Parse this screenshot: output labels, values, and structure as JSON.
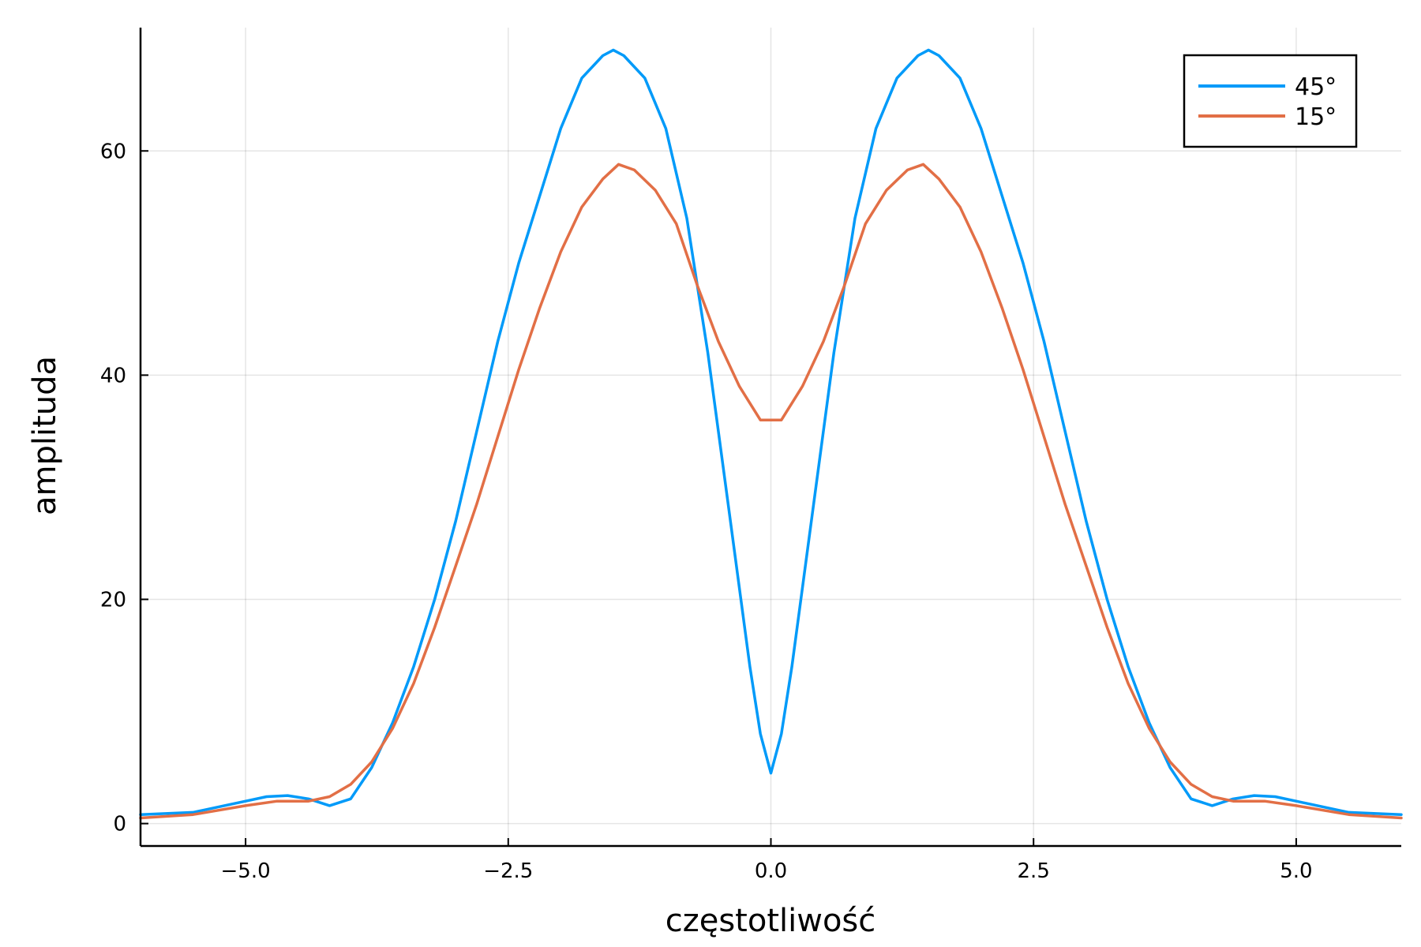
{
  "chart_data": {
    "type": "line",
    "xlabel": "częstotliwość",
    "ylabel": "amplituda",
    "xlim": [
      -6.0,
      6.0
    ],
    "ylim": [
      -2.0,
      71.0
    ],
    "xticks": [
      -5.0,
      -2.5,
      0.0,
      2.5,
      5.0
    ],
    "xtick_labels": [
      "−5.0",
      "−2.5",
      "0.0",
      "2.5",
      "5.0"
    ],
    "yticks": [
      0,
      20,
      40,
      60
    ],
    "ytick_labels": [
      "0",
      "20",
      "40",
      "60"
    ],
    "grid": true,
    "legend_position": "top-right",
    "series": [
      {
        "name": "45°",
        "color": "#009af9",
        "points": [
          [
            -6.0,
            0.8
          ],
          [
            -5.5,
            1.0
          ],
          [
            -5.0,
            2.0
          ],
          [
            -4.8,
            2.4
          ],
          [
            -4.6,
            2.5
          ],
          [
            -4.4,
            2.2
          ],
          [
            -4.2,
            1.6
          ],
          [
            -4.0,
            2.2
          ],
          [
            -3.8,
            5.0
          ],
          [
            -3.6,
            9.0
          ],
          [
            -3.4,
            14.0
          ],
          [
            -3.2,
            20.0
          ],
          [
            -3.0,
            27.0
          ],
          [
            -2.8,
            35.0
          ],
          [
            -2.6,
            43.0
          ],
          [
            -2.4,
            50.0
          ],
          [
            -2.2,
            56.0
          ],
          [
            -2.0,
            62.0
          ],
          [
            -1.8,
            66.5
          ],
          [
            -1.6,
            68.5
          ],
          [
            -1.5,
            69.0
          ],
          [
            -1.4,
            68.5
          ],
          [
            -1.2,
            66.5
          ],
          [
            -1.0,
            62.0
          ],
          [
            -0.8,
            54.0
          ],
          [
            -0.6,
            42.0
          ],
          [
            -0.4,
            28.0
          ],
          [
            -0.2,
            14.0
          ],
          [
            -0.1,
            8.0
          ],
          [
            0.0,
            4.5
          ],
          [
            0.1,
            8.0
          ],
          [
            0.2,
            14.0
          ],
          [
            0.4,
            28.0
          ],
          [
            0.6,
            42.0
          ],
          [
            0.8,
            54.0
          ],
          [
            1.0,
            62.0
          ],
          [
            1.2,
            66.5
          ],
          [
            1.4,
            68.5
          ],
          [
            1.5,
            69.0
          ],
          [
            1.6,
            68.5
          ],
          [
            1.8,
            66.5
          ],
          [
            2.0,
            62.0
          ],
          [
            2.2,
            56.0
          ],
          [
            2.4,
            50.0
          ],
          [
            2.6,
            43.0
          ],
          [
            2.8,
            35.0
          ],
          [
            3.0,
            27.0
          ],
          [
            3.2,
            20.0
          ],
          [
            3.4,
            14.0
          ],
          [
            3.6,
            9.0
          ],
          [
            3.8,
            5.0
          ],
          [
            4.0,
            2.2
          ],
          [
            4.2,
            1.6
          ],
          [
            4.4,
            2.2
          ],
          [
            4.6,
            2.5
          ],
          [
            4.8,
            2.4
          ],
          [
            5.0,
            2.0
          ],
          [
            5.5,
            1.0
          ],
          [
            6.0,
            0.8
          ]
        ]
      },
      {
        "name": "15°",
        "color": "#e26f46",
        "points": [
          [
            -6.0,
            0.5
          ],
          [
            -5.5,
            0.8
          ],
          [
            -5.0,
            1.6
          ],
          [
            -4.7,
            2.0
          ],
          [
            -4.4,
            2.0
          ],
          [
            -4.2,
            2.4
          ],
          [
            -4.0,
            3.5
          ],
          [
            -3.8,
            5.5
          ],
          [
            -3.6,
            8.5
          ],
          [
            -3.4,
            12.5
          ],
          [
            -3.2,
            17.5
          ],
          [
            -3.0,
            23.0
          ],
          [
            -2.8,
            28.5
          ],
          [
            -2.6,
            34.5
          ],
          [
            -2.4,
            40.5
          ],
          [
            -2.2,
            46.0
          ],
          [
            -2.0,
            51.0
          ],
          [
            -1.8,
            55.0
          ],
          [
            -1.6,
            57.5
          ],
          [
            -1.45,
            58.8
          ],
          [
            -1.3,
            58.3
          ],
          [
            -1.1,
            56.5
          ],
          [
            -0.9,
            53.5
          ],
          [
            -0.7,
            48.0
          ],
          [
            -0.5,
            43.0
          ],
          [
            -0.3,
            39.0
          ],
          [
            -0.1,
            36.0
          ],
          [
            0.0,
            36.0
          ],
          [
            0.1,
            36.0
          ],
          [
            0.3,
            39.0
          ],
          [
            0.5,
            43.0
          ],
          [
            0.7,
            48.0
          ],
          [
            0.9,
            53.5
          ],
          [
            1.1,
            56.5
          ],
          [
            1.3,
            58.3
          ],
          [
            1.45,
            58.8
          ],
          [
            1.6,
            57.5
          ],
          [
            1.8,
            55.0
          ],
          [
            2.0,
            51.0
          ],
          [
            2.2,
            46.0
          ],
          [
            2.4,
            40.5
          ],
          [
            2.6,
            34.5
          ],
          [
            2.8,
            28.5
          ],
          [
            3.0,
            23.0
          ],
          [
            3.2,
            17.5
          ],
          [
            3.4,
            12.5
          ],
          [
            3.6,
            8.5
          ],
          [
            3.8,
            5.5
          ],
          [
            4.0,
            3.5
          ],
          [
            4.2,
            2.4
          ],
          [
            4.4,
            2.0
          ],
          [
            4.7,
            2.0
          ],
          [
            5.0,
            1.6
          ],
          [
            5.5,
            0.8
          ],
          [
            6.0,
            0.5
          ]
        ]
      }
    ]
  }
}
